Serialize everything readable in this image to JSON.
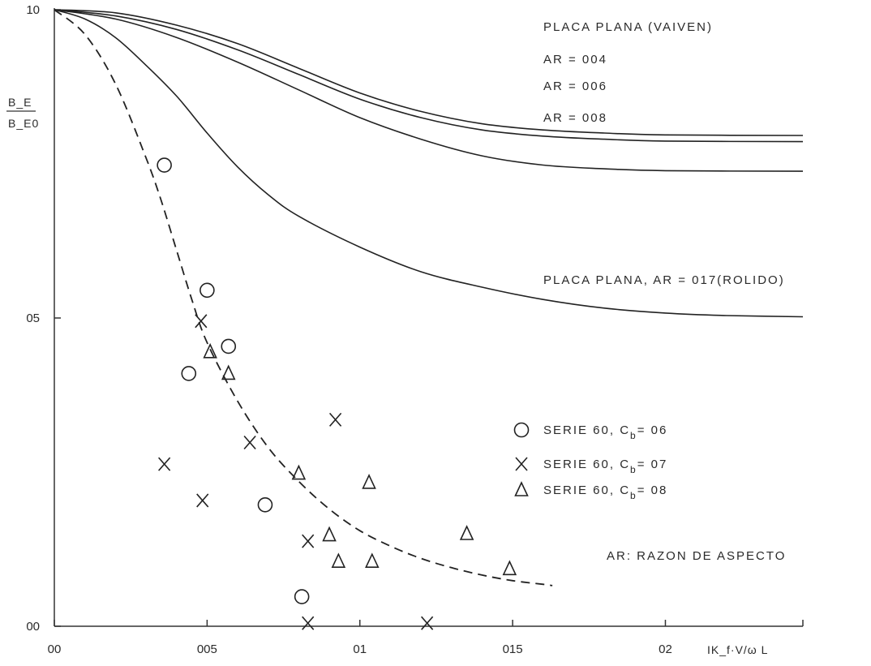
{
  "chart_data": {
    "type": "line",
    "title": "",
    "xlabel": "IK_f·V/ω L",
    "ylabel_top": "B_E",
    "ylabel_bottom": "B_E0",
    "xlim": [
      0,
      0.245
    ],
    "ylim": [
      0,
      1.0
    ],
    "x_ticks": [
      0,
      0.05,
      0.1,
      0.15,
      0.2
    ],
    "x_tick_labels": [
      "00",
      "005",
      "01",
      "015",
      "02"
    ],
    "y_ticks": [
      0,
      0.5,
      1.0
    ],
    "y_tick_labels": [
      "00",
      "05",
      "10"
    ],
    "annotations": {
      "flat_plate_heave_title": "PLACA PLANA (VAIVEN)",
      "ar_004": "AR = 004",
      "ar_006": "AR = 006",
      "ar_008": "AR = 008",
      "flat_plate_roll": "PLACA PLANA, AR = 017(ROLIDO)",
      "aspect_ratio_note": "AR: RAZON DE ASPECTO"
    },
    "series": [
      {
        "name": "AR = 004",
        "style": "solid",
        "points": [
          [
            0,
            1.0
          ],
          [
            0.02,
            0.995
          ],
          [
            0.04,
            0.975
          ],
          [
            0.06,
            0.945
          ],
          [
            0.08,
            0.905
          ],
          [
            0.1,
            0.865
          ],
          [
            0.12,
            0.835
          ],
          [
            0.14,
            0.815
          ],
          [
            0.16,
            0.805
          ],
          [
            0.18,
            0.8
          ],
          [
            0.2,
            0.797
          ],
          [
            0.245,
            0.796
          ]
        ]
      },
      {
        "name": "AR = 006",
        "style": "solid",
        "points": [
          [
            0,
            1.0
          ],
          [
            0.02,
            0.99
          ],
          [
            0.04,
            0.968
          ],
          [
            0.06,
            0.935
          ],
          [
            0.08,
            0.895
          ],
          [
            0.1,
            0.855
          ],
          [
            0.12,
            0.825
          ],
          [
            0.14,
            0.805
          ],
          [
            0.16,
            0.795
          ],
          [
            0.18,
            0.79
          ],
          [
            0.2,
            0.787
          ],
          [
            0.245,
            0.786
          ]
        ]
      },
      {
        "name": "AR = 008",
        "style": "solid",
        "points": [
          [
            0,
            1.0
          ],
          [
            0.02,
            0.985
          ],
          [
            0.04,
            0.955
          ],
          [
            0.06,
            0.915
          ],
          [
            0.08,
            0.87
          ],
          [
            0.1,
            0.825
          ],
          [
            0.12,
            0.79
          ],
          [
            0.14,
            0.763
          ],
          [
            0.16,
            0.748
          ],
          [
            0.18,
            0.742
          ],
          [
            0.2,
            0.739
          ],
          [
            0.245,
            0.738
          ]
        ]
      },
      {
        "name": "PLACA PLANA, AR = 017(ROLIDO)",
        "style": "solid",
        "points": [
          [
            0,
            1.0
          ],
          [
            0.01,
            0.985
          ],
          [
            0.02,
            0.955
          ],
          [
            0.03,
            0.91
          ],
          [
            0.04,
            0.86
          ],
          [
            0.05,
            0.8
          ],
          [
            0.06,
            0.745
          ],
          [
            0.07,
            0.7
          ],
          [
            0.08,
            0.665
          ],
          [
            0.1,
            0.615
          ],
          [
            0.12,
            0.575
          ],
          [
            0.14,
            0.55
          ],
          [
            0.16,
            0.53
          ],
          [
            0.18,
            0.516
          ],
          [
            0.2,
            0.508
          ],
          [
            0.22,
            0.504
          ],
          [
            0.245,
            0.502
          ]
        ]
      },
      {
        "name": "",
        "style": "dashed",
        "points": [
          [
            0,
            1.0
          ],
          [
            0.01,
            0.96
          ],
          [
            0.02,
            0.88
          ],
          [
            0.03,
            0.76
          ],
          [
            0.035,
            0.69
          ],
          [
            0.04,
            0.61
          ],
          [
            0.045,
            0.53
          ],
          [
            0.05,
            0.46
          ],
          [
            0.06,
            0.365
          ],
          [
            0.07,
            0.29
          ],
          [
            0.08,
            0.235
          ],
          [
            0.09,
            0.19
          ],
          [
            0.1,
            0.155
          ],
          [
            0.11,
            0.13
          ],
          [
            0.12,
            0.11
          ],
          [
            0.13,
            0.095
          ],
          [
            0.14,
            0.083
          ],
          [
            0.15,
            0.074
          ],
          [
            0.16,
            0.068
          ],
          [
            0.163,
            0.066
          ]
        ]
      }
    ],
    "scatter": [
      {
        "name": "SERIE 60, C_b = 06",
        "marker": "circle",
        "points": [
          [
            0.036,
            0.748
          ],
          [
            0.05,
            0.545
          ],
          [
            0.057,
            0.454
          ],
          [
            0.044,
            0.41
          ],
          [
            0.069,
            0.197
          ],
          [
            0.081,
            0.048
          ]
        ]
      },
      {
        "name": "SERIE 60, C_b = 07",
        "marker": "x",
        "points": [
          [
            0.036,
            0.263
          ],
          [
            0.048,
            0.495
          ],
          [
            0.0485,
            0.204
          ],
          [
            0.064,
            0.298
          ],
          [
            0.083,
            0.138
          ],
          [
            0.083,
            0.005
          ],
          [
            0.092,
            0.335
          ],
          [
            0.122,
            0.005
          ]
        ]
      },
      {
        "name": "SERIE 60, C_b = 08",
        "marker": "triangle",
        "points": [
          [
            0.051,
            0.445
          ],
          [
            0.057,
            0.41
          ],
          [
            0.08,
            0.248
          ],
          [
            0.103,
            0.233
          ],
          [
            0.09,
            0.148
          ],
          [
            0.093,
            0.105
          ],
          [
            0.104,
            0.105
          ],
          [
            0.135,
            0.15
          ],
          [
            0.149,
            0.093
          ]
        ]
      }
    ],
    "legend": [
      {
        "marker": "circle",
        "label": "SERIE 60, C_b = 06",
        "pre": "SERIE 60, C",
        "sub": "b",
        "post": "= 06"
      },
      {
        "marker": "x",
        "label": "SERIE 60, C_b = 07",
        "pre": "SERIE 60, C",
        "sub": "b",
        "post": "= 07"
      },
      {
        "marker": "triangle",
        "label": "SERIE 60, C_b = 08",
        "pre": "SERIE 60, C",
        "sub": "b",
        "post": "= 08"
      }
    ],
    "legend_placement": "center-right",
    "grid": false
  }
}
